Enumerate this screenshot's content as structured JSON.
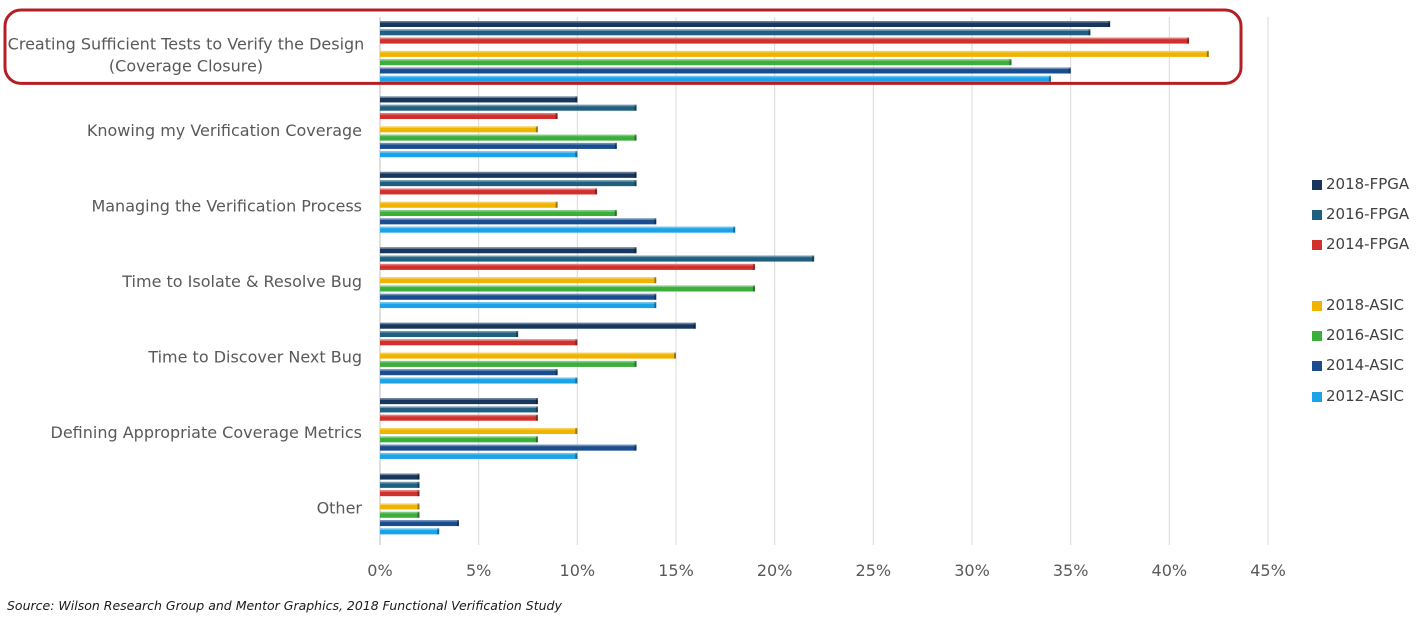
{
  "chart_data": {
    "type": "bar",
    "orientation": "horizontal",
    "categories": [
      "Creating Sufficient Tests to Verify the Design (Coverage Closure)",
      "Knowing my Verification Coverage",
      "Managing the Verification Process",
      "Time to Isolate & Resolve Bug",
      "Time to Discover Next Bug",
      "Defining Appropriate Coverage Metrics",
      "Other"
    ],
    "category_lines": [
      [
        "Creating Sufficient Tests to Verify the Design",
        "(Coverage Closure)"
      ],
      [
        "Knowing my Verification Coverage"
      ],
      [
        "Managing the Verification Process"
      ],
      [
        "Time to Isolate & Resolve Bug"
      ],
      [
        "Time to Discover Next Bug"
      ],
      [
        "Defining Appropriate Coverage Metrics"
      ],
      [
        "Other"
      ]
    ],
    "series": [
      {
        "name": "2018-FPGA",
        "color": "#17375e",
        "values": [
          37,
          10,
          13,
          13,
          16,
          8,
          2
        ]
      },
      {
        "name": "2016-FPGA",
        "color": "#1f5f80",
        "values": [
          36,
          13,
          13,
          22,
          7,
          8,
          2
        ]
      },
      {
        "name": "2014-FPGA",
        "color": "#d0312d",
        "values": [
          41,
          9,
          11,
          19,
          10,
          8,
          2
        ]
      },
      {
        "name": "2018-ASIC",
        "color": "#f0b400",
        "values": [
          42,
          8,
          9,
          14,
          15,
          10,
          2
        ]
      },
      {
        "name": "2016-ASIC",
        "color": "#3cae3c",
        "values": [
          32,
          13,
          12,
          19,
          13,
          8,
          2
        ]
      },
      {
        "name": "2014-ASIC",
        "color": "#1a4d8f",
        "values": [
          35,
          12,
          14,
          14,
          9,
          13,
          4
        ]
      },
      {
        "name": "2012-ASIC",
        "color": "#1aa3e8",
        "values": [
          34,
          10,
          18,
          14,
          10,
          10,
          3
        ]
      }
    ],
    "xlim": [
      0,
      45
    ],
    "x_ticks": [
      "0%",
      "5%",
      "10%",
      "15%",
      "20%",
      "25%",
      "30%",
      "35%",
      "40%",
      "45%"
    ],
    "grid": true,
    "legend_position": "right",
    "highlighted_category": "Creating Sufficient Tests to Verify the Design (Coverage Closure)",
    "highlight_color": "#b51f24"
  },
  "source_note": "Source:  Wilson Research Group and Mentor Graphics, 2018 Functional Verification Study"
}
